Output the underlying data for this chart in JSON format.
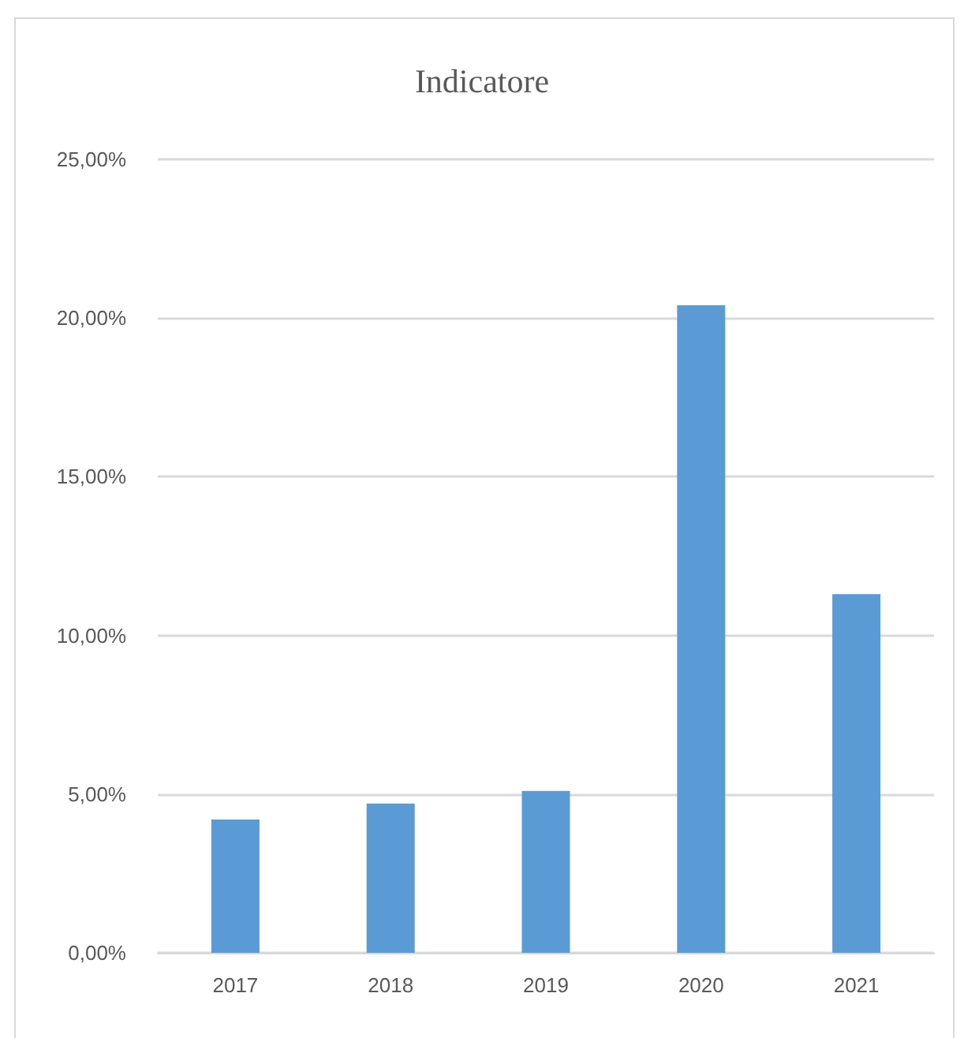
{
  "chart_data": {
    "type": "bar",
    "title": "Indicatore",
    "categories": [
      "2017",
      "2018",
      "2019",
      "2020",
      "2021"
    ],
    "values": [
      4.2,
      4.7,
      5.1,
      20.4,
      11.3
    ],
    "color": "#5b9bd5",
    "ylim": [
      0,
      25
    ],
    "yticks": [
      {
        "value": 0,
        "label": "0,00%"
      },
      {
        "value": 5,
        "label": "5,00%"
      },
      {
        "value": 10,
        "label": "10,00%"
      },
      {
        "value": 15,
        "label": "15,00%"
      },
      {
        "value": 20,
        "label": "20,00%"
      },
      {
        "value": 25,
        "label": "25,00%"
      }
    ],
    "grid": "y"
  }
}
